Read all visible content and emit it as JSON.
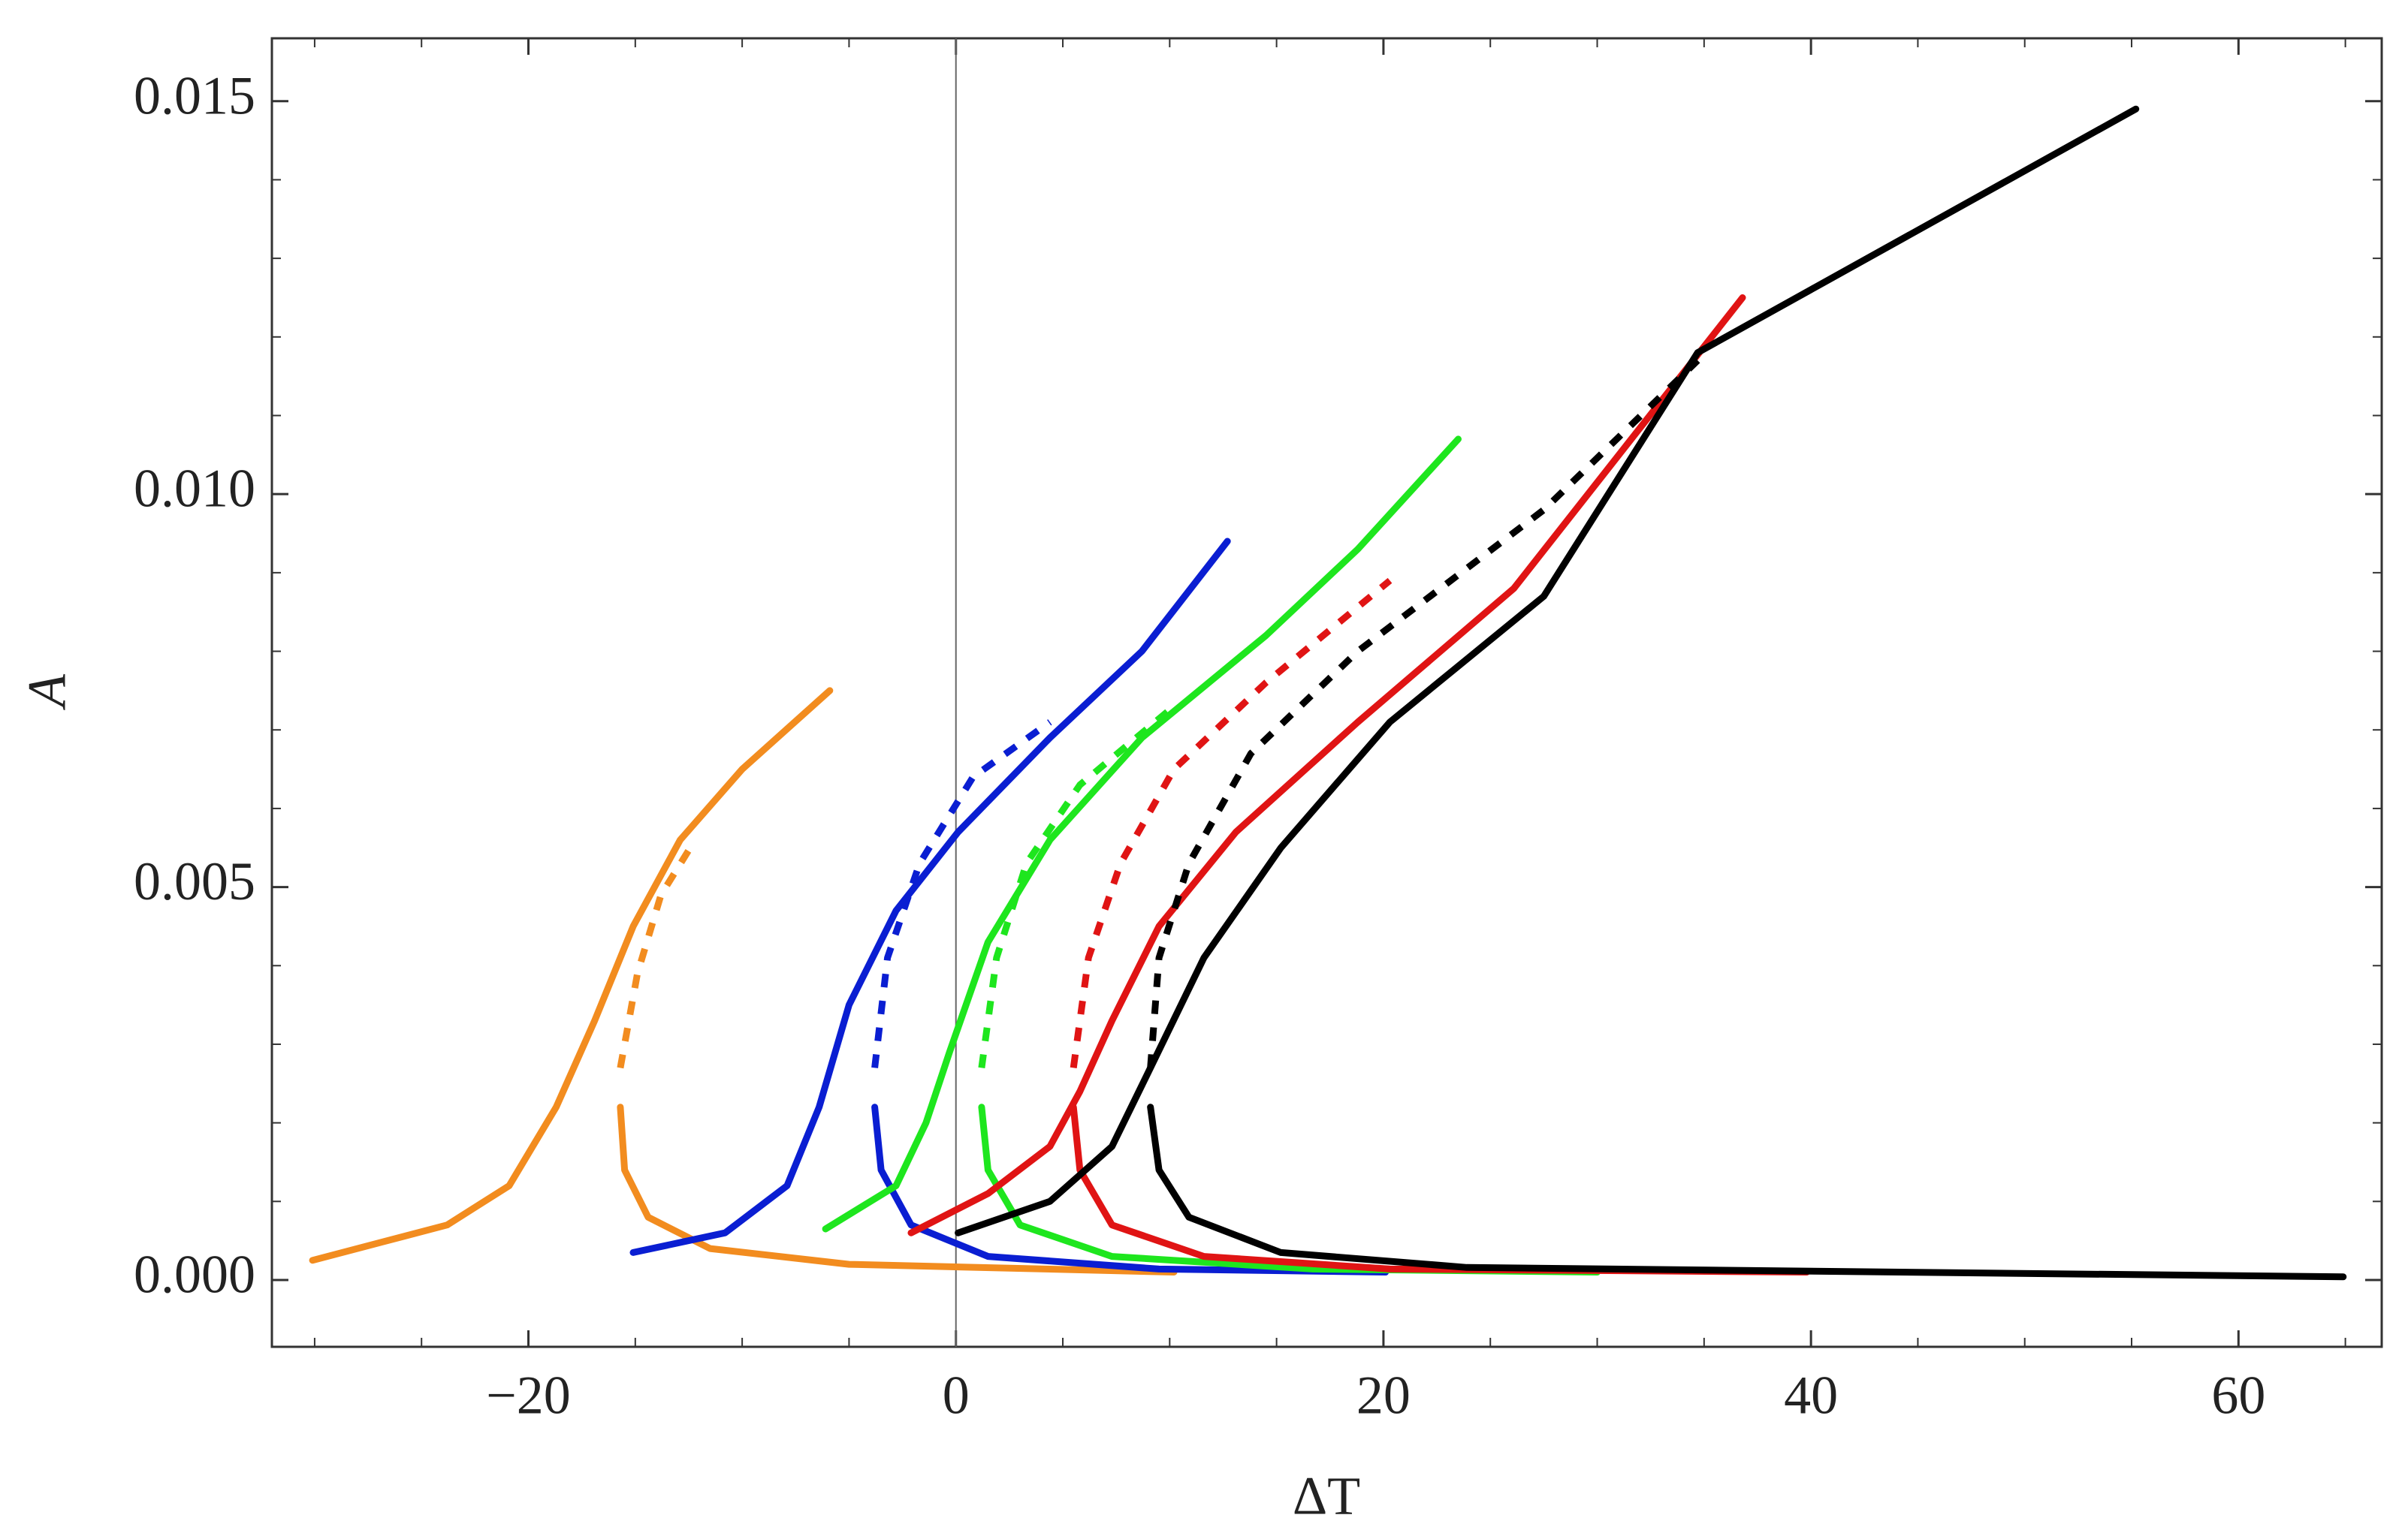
{
  "chart_data": {
    "type": "line",
    "x_label": "ΔT",
    "y_label": "A",
    "xlim": [
      -32,
      66.7
    ],
    "ylim": [
      -0.00085,
      0.0158
    ],
    "xticks": [
      {
        "value": -20,
        "label": "−20"
      },
      0,
      20,
      40,
      60
    ],
    "yticks": [
      {
        "value": 0,
        "label": "0.000"
      },
      {
        "value": 0.005,
        "label": "0.005"
      },
      {
        "value": 0.01,
        "label": "0.010"
      },
      {
        "value": 0.015,
        "label": "0.015"
      }
    ],
    "xminorticks": [
      -30,
      -25,
      -15,
      -10,
      -5,
      5,
      10,
      15,
      25,
      30,
      35,
      45,
      50,
      55,
      65
    ],
    "yminorticks": [
      0.001,
      0.002,
      0.003,
      0.004,
      0.006,
      0.007,
      0.008,
      0.009,
      0.011,
      0.012,
      0.013,
      0.014
    ],
    "zero_line_x": 0,
    "series": [
      {
        "color": "#f28c1f",
        "dash": false,
        "x": [
          -30.1,
          -23.8,
          -20.9,
          -18.7,
          -16.9,
          -15.1,
          -12.9,
          -10.0,
          -5.9
        ],
        "y": [
          0.00025,
          0.0007,
          0.0012,
          0.0022,
          0.0033,
          0.0045,
          0.0056,
          0.0065,
          0.0075
        ]
      },
      {
        "color": "#f28c1f",
        "dash": true,
        "x": [
          -15.7,
          -14.9,
          -13.8,
          -12.2
        ],
        "y": [
          0.0027,
          0.0039,
          0.0049,
          0.0056
        ]
      },
      {
        "color": "#f28c1f",
        "dash": false,
        "x": [
          -15.7,
          -15.5,
          -14.4,
          -11.5,
          -5.0,
          10.2
        ],
        "y": [
          0.0022,
          0.0014,
          0.0008,
          0.0004,
          0.0002,
          0.0001
        ]
      },
      {
        "color": "#0a1ed2",
        "dash": false,
        "x": [
          -15.1,
          -10.8,
          -7.9,
          -6.4,
          -5.0,
          -2.8,
          0.1,
          4.4,
          8.7,
          12.7
        ],
        "y": [
          0.00035,
          0.0006,
          0.0012,
          0.0022,
          0.0035,
          0.0047,
          0.0057,
          0.0069,
          0.008,
          0.0094
        ]
      },
      {
        "color": "#0a1ed2",
        "dash": true,
        "x": [
          -3.8,
          -3.2,
          -1.7,
          0.8,
          4.4
        ],
        "y": [
          0.0027,
          0.0041,
          0.0053,
          0.0064,
          0.0071
        ]
      },
      {
        "color": "#0a1ed2",
        "dash": false,
        "x": [
          -3.8,
          -3.5,
          -2.1,
          1.5,
          9.5,
          20.1
        ],
        "y": [
          0.0022,
          0.0014,
          0.0007,
          0.0003,
          0.00014,
          0.0001
        ]
      },
      {
        "color": "#1ee61e",
        "dash": false,
        "x": [
          -6.1,
          -2.8,
          -1.4,
          -0.3,
          1.5,
          4.4,
          8.7,
          14.5,
          18.8,
          23.5
        ],
        "y": [
          0.00065,
          0.0012,
          0.002,
          0.0029,
          0.0043,
          0.0056,
          0.0069,
          0.0082,
          0.0093,
          0.0107
        ]
      },
      {
        "color": "#1ee61e",
        "dash": true,
        "x": [
          1.2,
          1.9,
          3.3,
          5.8,
          10.2
        ],
        "y": [
          0.0027,
          0.0041,
          0.0053,
          0.0063,
          0.0073
        ]
      },
      {
        "color": "#1ee61e",
        "dash": false,
        "x": [
          1.2,
          1.5,
          3.0,
          7.3,
          16.7,
          30.0
        ],
        "y": [
          0.0022,
          0.0014,
          0.0007,
          0.0003,
          0.00014,
          0.0001
        ]
      },
      {
        "color": "#e01414",
        "dash": false,
        "x": [
          -2.1,
          1.5,
          4.4,
          5.8,
          7.3,
          9.5,
          13.1,
          18.8,
          26.1,
          36.8
        ],
        "y": [
          0.0006,
          0.0011,
          0.0017,
          0.0024,
          0.0033,
          0.0045,
          0.0057,
          0.0071,
          0.0088,
          0.0125
        ]
      },
      {
        "color": "#e01414",
        "dash": true,
        "x": [
          5.5,
          6.2,
          7.7,
          10.2,
          14.5,
          20.3
        ],
        "y": [
          0.0027,
          0.0041,
          0.0053,
          0.0065,
          0.0076,
          0.0089
        ]
      },
      {
        "color": "#e01414",
        "dash": false,
        "x": [
          5.5,
          5.8,
          7.3,
          11.6,
          20.3,
          39.8
        ],
        "y": [
          0.0022,
          0.0014,
          0.0007,
          0.0003,
          0.00014,
          0.0001
        ]
      },
      {
        "color": "#000000",
        "dash": false,
        "x": [
          0.1,
          4.4,
          7.3,
          9.1,
          11.6,
          15.2,
          20.3,
          27.5,
          34.7,
          55.2
        ],
        "y": [
          0.0006,
          0.001,
          0.0017,
          0.0027,
          0.0041,
          0.0055,
          0.0071,
          0.0087,
          0.0118,
          0.0149
        ]
      },
      {
        "color": "#000000",
        "dash": true,
        "x": [
          9.1,
          9.5,
          10.9,
          13.8,
          18.8,
          27.5,
          34.7
        ],
        "y": [
          0.0027,
          0.0041,
          0.0053,
          0.0067,
          0.008,
          0.0098,
          0.0117
        ]
      },
      {
        "color": "#000000",
        "dash": false,
        "x": [
          9.1,
          9.5,
          10.9,
          15.2,
          23.9,
          64.9
        ],
        "y": [
          0.0022,
          0.0014,
          0.0008,
          0.00035,
          0.00016,
          4e-05
        ]
      }
    ]
  }
}
